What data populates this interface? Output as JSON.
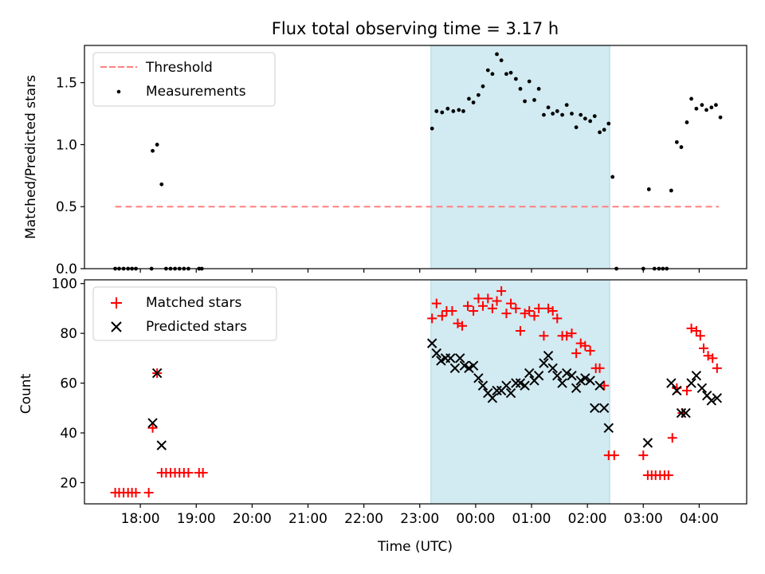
{
  "title": "Flux total observing time = 3.17 h",
  "xlabel": "Time (UTC)",
  "xtick_labels": [
    "18:00",
    "19:00",
    "20:00",
    "21:00",
    "22:00",
    "23:00",
    "00:00",
    "01:00",
    "02:00",
    "03:00",
    "04:00"
  ],
  "colors": {
    "threshold": "#ff8080",
    "measurements": "#000000",
    "matched": "#ff0000",
    "predicted": "#000000",
    "shade": "#add8e6"
  },
  "chart_data": [
    {
      "type": "scatter",
      "ylabel": "Matched/Predicted stars",
      "x_unit": "hours since 18:00 UTC",
      "xlim": [
        -1.0,
        10.85
      ],
      "ylim": [
        0,
        1.8
      ],
      "yticks": [
        0.0,
        0.5,
        1.0,
        1.5
      ],
      "ytick_labels": [
        "0.0",
        "0.5",
        "1.0",
        "1.5"
      ],
      "shaded_interval": [
        5.2,
        8.4
      ],
      "legend": {
        "position": "top-left",
        "entries": [
          "Threshold",
          "Measurements"
        ]
      },
      "threshold": {
        "name": "Threshold",
        "y": 0.5,
        "x_range": [
          -0.45,
          10.35
        ],
        "style": "dashed"
      },
      "series": [
        {
          "name": "Measurements",
          "points": [
            [
              -0.45,
              0
            ],
            [
              -0.38,
              0
            ],
            [
              -0.3,
              0
            ],
            [
              -0.22,
              0
            ],
            [
              -0.15,
              0
            ],
            [
              -0.08,
              0
            ],
            [
              0.2,
              0
            ],
            [
              0.22,
              0.95
            ],
            [
              0.3,
              1.0
            ],
            [
              0.38,
              0.68
            ],
            [
              0.46,
              0
            ],
            [
              0.54,
              0
            ],
            [
              0.62,
              0
            ],
            [
              0.7,
              0
            ],
            [
              0.78,
              0
            ],
            [
              0.86,
              0
            ],
            [
              1.05,
              0
            ],
            [
              1.1,
              0
            ],
            [
              5.22,
              1.13
            ],
            [
              5.3,
              1.27
            ],
            [
              5.4,
              1.26
            ],
            [
              5.5,
              1.29
            ],
            [
              5.6,
              1.27
            ],
            [
              5.7,
              1.28
            ],
            [
              5.78,
              1.27
            ],
            [
              5.88,
              1.37
            ],
            [
              5.96,
              1.34
            ],
            [
              6.05,
              1.4
            ],
            [
              6.13,
              1.47
            ],
            [
              6.22,
              1.6
            ],
            [
              6.3,
              1.57
            ],
            [
              6.38,
              1.73
            ],
            [
              6.46,
              1.68
            ],
            [
              6.55,
              1.57
            ],
            [
              6.63,
              1.58
            ],
            [
              6.72,
              1.53
            ],
            [
              6.8,
              1.45
            ],
            [
              6.88,
              1.35
            ],
            [
              6.96,
              1.51
            ],
            [
              7.05,
              1.36
            ],
            [
              7.13,
              1.45
            ],
            [
              7.22,
              1.24
            ],
            [
              7.3,
              1.3
            ],
            [
              7.38,
              1.25
            ],
            [
              7.46,
              1.27
            ],
            [
              7.55,
              1.24
            ],
            [
              7.63,
              1.32
            ],
            [
              7.72,
              1.25
            ],
            [
              7.8,
              1.14
            ],
            [
              7.88,
              1.24
            ],
            [
              7.96,
              1.21
            ],
            [
              8.05,
              1.19
            ],
            [
              8.13,
              1.23
            ],
            [
              8.22,
              1.1
            ],
            [
              8.3,
              1.12
            ],
            [
              8.38,
              1.17
            ],
            [
              8.45,
              0.74
            ],
            [
              8.52,
              0
            ],
            [
              9.0,
              0
            ],
            [
              9.1,
              0.64
            ],
            [
              9.2,
              0
            ],
            [
              9.28,
              0
            ],
            [
              9.35,
              0
            ],
            [
              9.42,
              0
            ],
            [
              9.5,
              0.63
            ],
            [
              9.6,
              1.02
            ],
            [
              9.68,
              0.98
            ],
            [
              9.78,
              1.18
            ],
            [
              9.86,
              1.37
            ],
            [
              9.95,
              1.29
            ],
            [
              10.05,
              1.32
            ],
            [
              10.13,
              1.28
            ],
            [
              10.22,
              1.3
            ],
            [
              10.3,
              1.32
            ],
            [
              10.38,
              1.22
            ]
          ]
        }
      ]
    },
    {
      "type": "scatter",
      "ylabel": "Count",
      "x_unit": "hours since 18:00 UTC",
      "xlim": [
        -1.0,
        10.85
      ],
      "ylim": [
        11.5,
        101.5
      ],
      "yticks": [
        20,
        40,
        60,
        80,
        100
      ],
      "ytick_labels": [
        "20",
        "40",
        "60",
        "80",
        "100"
      ],
      "shaded_interval": [
        5.2,
        8.4
      ],
      "legend": {
        "position": "top-left",
        "entries": [
          "Matched stars",
          "Predicted stars"
        ]
      },
      "series": [
        {
          "name": "Matched stars",
          "marker": "+",
          "points": [
            [
              -0.45,
              16
            ],
            [
              -0.38,
              16
            ],
            [
              -0.3,
              16
            ],
            [
              -0.22,
              16
            ],
            [
              -0.15,
              16
            ],
            [
              -0.08,
              16
            ],
            [
              0.15,
              16
            ],
            [
              0.22,
              42
            ],
            [
              0.3,
              64
            ],
            [
              0.38,
              24
            ],
            [
              0.46,
              24
            ],
            [
              0.54,
              24
            ],
            [
              0.62,
              24
            ],
            [
              0.7,
              24
            ],
            [
              0.78,
              24
            ],
            [
              0.86,
              24
            ],
            [
              1.05,
              24
            ],
            [
              1.12,
              24
            ],
            [
              5.22,
              86
            ],
            [
              5.3,
              92
            ],
            [
              5.4,
              87
            ],
            [
              5.48,
              89
            ],
            [
              5.58,
              89
            ],
            [
              5.68,
              84
            ],
            [
              5.76,
              83
            ],
            [
              5.86,
              91
            ],
            [
              5.96,
              89
            ],
            [
              6.05,
              94
            ],
            [
              6.13,
              91
            ],
            [
              6.22,
              94
            ],
            [
              6.3,
              90
            ],
            [
              6.38,
              93
            ],
            [
              6.46,
              97
            ],
            [
              6.55,
              88
            ],
            [
              6.63,
              92
            ],
            [
              6.72,
              90
            ],
            [
              6.8,
              81
            ],
            [
              6.88,
              88
            ],
            [
              6.96,
              89
            ],
            [
              7.05,
              87
            ],
            [
              7.13,
              90
            ],
            [
              7.22,
              79
            ],
            [
              7.3,
              90
            ],
            [
              7.38,
              89
            ],
            [
              7.46,
              86
            ],
            [
              7.55,
              79
            ],
            [
              7.63,
              79
            ],
            [
              7.72,
              80
            ],
            [
              7.8,
              72
            ],
            [
              7.88,
              76
            ],
            [
              7.96,
              75
            ],
            [
              8.05,
              73
            ],
            [
              8.15,
              66
            ],
            [
              8.22,
              66
            ],
            [
              8.3,
              59
            ],
            [
              8.38,
              31
            ],
            [
              8.48,
              31
            ],
            [
              9.0,
              31
            ],
            [
              9.08,
              23
            ],
            [
              9.15,
              23
            ],
            [
              9.22,
              23
            ],
            [
              9.3,
              23
            ],
            [
              9.38,
              23
            ],
            [
              9.45,
              23
            ],
            [
              9.52,
              38
            ],
            [
              9.6,
              58
            ],
            [
              9.7,
              48
            ],
            [
              9.78,
              57
            ],
            [
              9.86,
              82
            ],
            [
              9.95,
              81
            ],
            [
              10.02,
              79
            ],
            [
              10.08,
              74
            ],
            [
              10.16,
              71
            ],
            [
              10.24,
              70
            ],
            [
              10.32,
              66
            ]
          ]
        },
        {
          "name": "Predicted stars",
          "marker": "x",
          "points": [
            [
              0.22,
              44
            ],
            [
              0.3,
              64
            ],
            [
              0.38,
              35
            ],
            [
              5.22,
              76
            ],
            [
              5.3,
              72
            ],
            [
              5.38,
              69
            ],
            [
              5.46,
              70
            ],
            [
              5.55,
              70
            ],
            [
              5.63,
              66
            ],
            [
              5.72,
              70
            ],
            [
              5.8,
              67
            ],
            [
              5.88,
              66
            ],
            [
              5.96,
              67
            ],
            [
              6.05,
              62
            ],
            [
              6.13,
              59
            ],
            [
              6.22,
              56
            ],
            [
              6.3,
              54
            ],
            [
              6.38,
              57
            ],
            [
              6.46,
              57
            ],
            [
              6.55,
              59
            ],
            [
              6.63,
              56
            ],
            [
              6.72,
              60
            ],
            [
              6.8,
              60
            ],
            [
              6.88,
              59
            ],
            [
              6.96,
              64
            ],
            [
              7.05,
              61
            ],
            [
              7.13,
              63
            ],
            [
              7.22,
              68
            ],
            [
              7.3,
              71
            ],
            [
              7.38,
              66
            ],
            [
              7.46,
              63
            ],
            [
              7.55,
              60
            ],
            [
              7.63,
              64
            ],
            [
              7.72,
              63
            ],
            [
              7.8,
              58
            ],
            [
              7.88,
              61
            ],
            [
              7.96,
              62
            ],
            [
              8.05,
              61
            ],
            [
              8.13,
              50
            ],
            [
              8.22,
              59
            ],
            [
              8.3,
              50
            ],
            [
              8.38,
              42
            ],
            [
              9.08,
              36
            ],
            [
              9.5,
              60
            ],
            [
              9.6,
              57
            ],
            [
              9.68,
              48
            ],
            [
              9.76,
              48
            ],
            [
              9.86,
              60
            ],
            [
              9.95,
              63
            ],
            [
              10.05,
              58
            ],
            [
              10.14,
              55
            ],
            [
              10.22,
              53
            ],
            [
              10.32,
              54
            ]
          ]
        }
      ]
    }
  ]
}
